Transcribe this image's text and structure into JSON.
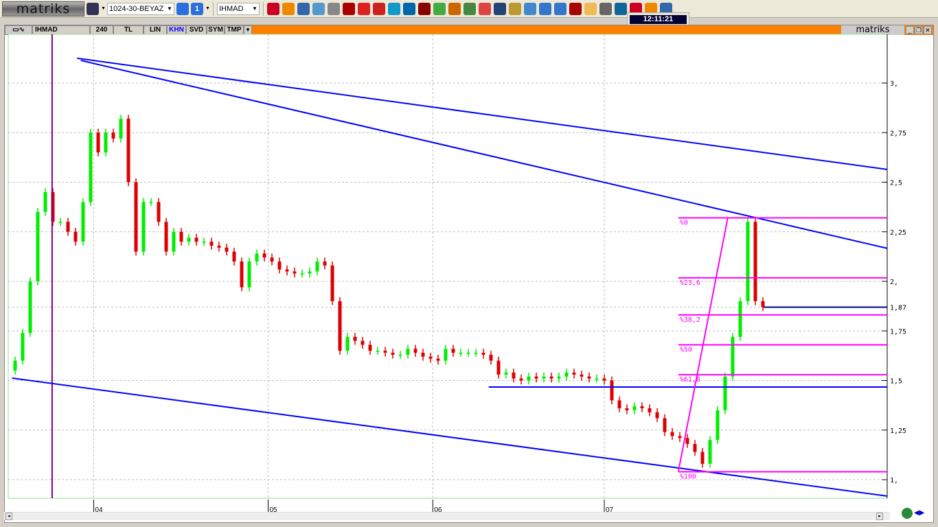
{
  "toolbar": {
    "logo": "matriks",
    "layout": "1024-30-BEYAZ",
    "page": "1",
    "symbol": "IHMAD",
    "clock": "12:11:21",
    "icons": [
      "save-icon",
      "page-icon",
      "pen-icon",
      "chart-icon",
      "pie-icon",
      "news-icon",
      "clock-icon",
      "tools-icon",
      "eye-icon",
      "bold-icon",
      "text-color-icon",
      "underline-icon",
      "info-icon",
      "vip-icon",
      "m-icon",
      "money-icon",
      "transfer-icon",
      "traffic-light-icon",
      "alarm-icon",
      "windows-icon",
      "cash-icon",
      "user-icon",
      "globe-icon",
      "window-icon",
      "window2-icon",
      "h-icon",
      "mail-icon",
      "print-icon",
      "book-icon"
    ]
  },
  "chart_header": {
    "symbol": "IHMAD",
    "period": "240",
    "currency": "TL",
    "scale": "LIN",
    "tabs": [
      "KHN",
      "SVD",
      "SYM",
      "TMP"
    ],
    "brand": "matriks"
  },
  "colors": {
    "up": "#00ee00",
    "down": "#dd0000",
    "trend": "#0000ff",
    "fib": "#ff00ff",
    "accent": "#ff8000"
  },
  "chart_data": {
    "type": "candlestick",
    "y_ticks": [
      {
        "v": 3,
        "l": "3,"
      },
      {
        "v": 2.75,
        "l": "2,75"
      },
      {
        "v": 2.5,
        "l": "2,5"
      },
      {
        "v": 2.25,
        "l": "2,25"
      },
      {
        "v": 2,
        "l": "2,"
      },
      {
        "v": 1.87,
        "l": "1,87"
      },
      {
        "v": 1.75,
        "l": "1,75"
      },
      {
        "v": 1.5,
        "l": "1,5"
      },
      {
        "v": 1.25,
        "l": "1,25"
      },
      {
        "v": 1,
        "l": "1,"
      }
    ],
    "ylim": [
      0.9,
      3.25
    ],
    "x_labels": [
      {
        "i": 10.4,
        "l": "04"
      },
      {
        "i": 33.5,
        "l": "05"
      },
      {
        "i": 55.3,
        "l": "06"
      },
      {
        "i": 78,
        "l": "07"
      }
    ],
    "grid": true,
    "closes": [
      1.6,
      1.74,
      2.0,
      2.35,
      2.45,
      2.3,
      2.3,
      2.25,
      2.2,
      2.4,
      2.75,
      2.65,
      2.75,
      2.72,
      2.82,
      2.5,
      2.15,
      2.4,
      2.4,
      2.3,
      2.15,
      2.25,
      2.2,
      2.22,
      2.2,
      2.2,
      2.18,
      2.17,
      2.15,
      2.1,
      1.97,
      2.1,
      2.14,
      2.12,
      2.1,
      2.06,
      2.05,
      2.04,
      2.04,
      2.05,
      2.1,
      2.08,
      1.9,
      1.65,
      1.72,
      1.7,
      1.68,
      1.65,
      1.65,
      1.64,
      1.63,
      1.63,
      1.66,
      1.64,
      1.62,
      1.61,
      1.6,
      1.66,
      1.64,
      1.64,
      1.64,
      1.64,
      1.63,
      1.6,
      1.53,
      1.54,
      1.51,
      1.5,
      1.52,
      1.51,
      1.52,
      1.51,
      1.52,
      1.54,
      1.53,
      1.52,
      1.51,
      1.51,
      1.5,
      1.4,
      1.36,
      1.35,
      1.37,
      1.36,
      1.34,
      1.31,
      1.24,
      1.22,
      1.21,
      1.18,
      1.14,
      1.08,
      1.2,
      1.35,
      1.52,
      1.72,
      1.9,
      2.3,
      1.9,
      1.87
    ],
    "trendlines": [
      [
        8.2,
        3.125,
        115.5,
        2.564
      ],
      [
        8.7,
        3.114,
        115.5,
        2.166
      ],
      [
        -0.4,
        1.512,
        115.5,
        0.917
      ]
    ],
    "horizontal_lines": [
      {
        "from": 99.1,
        "price": 1.87
      },
      {
        "from": 62.7,
        "price": 1.467
      }
    ],
    "vertical_line": 4.9,
    "fibonacci": {
      "from": 87.8,
      "high": 2.32,
      "low": 1.04,
      "levels": [
        {
          "p": 0,
          "l": "%0"
        },
        {
          "p": 23.6,
          "l": "%23,6"
        },
        {
          "p": 38.2,
          "l": "%38,2"
        },
        {
          "p": 50,
          "l": "%50"
        },
        {
          "p": 61.8,
          "l": "%61,8"
        },
        {
          "p": 100,
          "l": "%100"
        }
      ]
    }
  }
}
